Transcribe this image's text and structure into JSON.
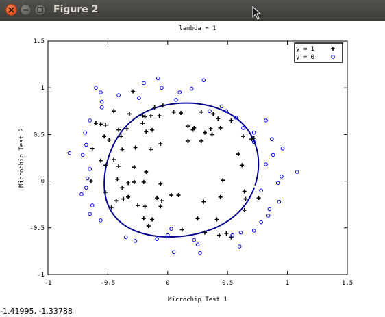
{
  "window": {
    "title": "Figure 2",
    "status_coords": "-1.41995, -1.33788"
  },
  "chart_data": {
    "type": "scatter",
    "title": "lambda = 1",
    "xlabel": "Microchip Test 1",
    "ylabel": "Microchip Test 2",
    "xlim": [
      -1,
      1.5
    ],
    "ylim": [
      -1,
      1.5
    ],
    "xticks": [
      -1,
      -0.5,
      0,
      0.5,
      1,
      1.5
    ],
    "xtick_labels": [
      "-1",
      "-0.5",
      "0",
      "0.5",
      "1",
      "1.5"
    ],
    "yticks": [
      -1,
      -0.5,
      0,
      0.5,
      1,
      1.5
    ],
    "ytick_labels": [
      "-1",
      "-0.5",
      "0",
      "0.5",
      "1",
      "1.5"
    ],
    "legend_position": "top-right",
    "series": [
      {
        "name": "y = 1",
        "marker": "plus",
        "color": "#000000",
        "points": [
          [
            -0.29,
            0.96
          ],
          [
            -0.04,
            0.81
          ],
          [
            -0.11,
            0.79
          ],
          [
            -0.45,
            0.75
          ],
          [
            -0.32,
            0.72
          ],
          [
            -0.21,
            0.7
          ],
          [
            -0.19,
            0.69
          ],
          [
            -0.14,
            0.7
          ],
          [
            -0.07,
            0.7
          ],
          [
            -0.6,
            0.62
          ],
          [
            -0.56,
            0.61
          ],
          [
            -0.21,
            0.62
          ],
          [
            -0.52,
            0.6
          ],
          [
            -0.34,
            0.56
          ],
          [
            -0.41,
            0.55
          ],
          [
            -0.18,
            0.53
          ],
          [
            -0.13,
            0.55
          ],
          [
            -0.39,
            0.48
          ],
          [
            -0.53,
            0.48
          ],
          [
            -0.49,
            0.44
          ],
          [
            -0.63,
            0.35
          ],
          [
            -0.38,
            0.34
          ],
          [
            -0.27,
            0.36
          ],
          [
            -0.14,
            0.34
          ],
          [
            -0.56,
            0.22
          ],
          [
            -0.45,
            0.23
          ],
          [
            -0.52,
            0.17
          ],
          [
            -0.41,
            0.16
          ],
          [
            -0.28,
            0.15
          ],
          [
            -0.18,
            0.1
          ],
          [
            -0.06,
            0.4
          ],
          [
            0.05,
            0.74
          ],
          [
            0.11,
            0.73
          ],
          [
            0.17,
            0.59
          ],
          [
            0.22,
            0.57
          ],
          [
            0.21,
            0.55
          ],
          [
            0.28,
            0.74
          ],
          [
            0.38,
            0.72
          ],
          [
            0.42,
            0.67
          ],
          [
            0.53,
            0.65
          ],
          [
            0.44,
            0.57
          ],
          [
            0.36,
            0.56
          ],
          [
            0.31,
            0.52
          ],
          [
            0.37,
            0.5
          ],
          [
            0.28,
            0.43
          ],
          [
            0.17,
            0.43
          ],
          [
            0.63,
            0.48
          ],
          [
            0.72,
            0.46
          ],
          [
            0.7,
            0.45
          ],
          [
            0.59,
            0.29
          ],
          [
            0.62,
            0.17
          ],
          [
            0.46,
            0.01
          ],
          [
            -0.42,
            0.02
          ],
          [
            -0.64,
            0.0
          ],
          [
            -0.28,
            -0.01
          ],
          [
            -0.33,
            -0.02
          ],
          [
            -0.2,
            -0.01
          ],
          [
            -0.06,
            -0.03
          ],
          [
            -0.38,
            -0.07
          ],
          [
            -0.52,
            -0.12
          ],
          [
            -0.37,
            -0.19
          ],
          [
            -0.33,
            -0.17
          ],
          [
            -0.09,
            -0.18
          ],
          [
            -0.43,
            -0.21
          ],
          [
            -0.47,
            -0.28
          ],
          [
            -0.25,
            -0.26
          ],
          [
            -0.19,
            -0.27
          ],
          [
            -0.06,
            -0.27
          ],
          [
            -0.05,
            -0.21
          ],
          [
            0.03,
            -0.15
          ],
          [
            0.09,
            -0.15
          ],
          [
            0.3,
            -0.22
          ],
          [
            0.44,
            -0.17
          ],
          [
            0.64,
            -0.11
          ],
          [
            0.65,
            -0.19
          ],
          [
            0.76,
            -0.18
          ],
          [
            0.64,
            -0.31
          ],
          [
            -0.2,
            -0.4
          ],
          [
            -0.13,
            -0.41
          ],
          [
            -0.16,
            -0.48
          ],
          [
            0.25,
            -0.4
          ],
          [
            0.12,
            -0.52
          ],
          [
            0.31,
            -0.55
          ],
          [
            0.41,
            -0.41
          ],
          [
            0.49,
            -0.56
          ],
          [
            0.53,
            -0.6
          ],
          [
            0.43,
            -0.58
          ]
        ]
      },
      {
        "name": "y = 0",
        "marker": "circle",
        "color": "#0000ff",
        "points": [
          [
            -0.08,
            1.1
          ],
          [
            -0.2,
            1.05
          ],
          [
            -0.05,
            1.0
          ],
          [
            0.1,
            0.95
          ],
          [
            0.2,
            0.99
          ],
          [
            0.35,
            0.75
          ],
          [
            0.3,
            1.08
          ],
          [
            -0.6,
            1.0
          ],
          [
            -0.56,
            0.95
          ],
          [
            -0.41,
            0.92
          ],
          [
            -0.24,
            0.89
          ],
          [
            0.07,
            0.87
          ],
          [
            0.45,
            0.8
          ],
          [
            0.49,
            0.75
          ],
          [
            0.57,
            0.68
          ],
          [
            0.63,
            0.57
          ],
          [
            0.72,
            0.52
          ],
          [
            0.72,
            0.42
          ],
          [
            0.82,
            0.65
          ],
          [
            0.87,
            0.45
          ],
          [
            0.96,
            0.35
          ],
          [
            0.88,
            0.28
          ],
          [
            0.82,
            0.18
          ],
          [
            1.08,
            0.1
          ],
          [
            0.95,
            0.05
          ],
          [
            0.92,
            -0.02
          ],
          [
            0.78,
            -0.1
          ],
          [
            0.93,
            -0.22
          ],
          [
            0.85,
            -0.3
          ],
          [
            0.84,
            -0.37
          ],
          [
            0.78,
            -0.44
          ],
          [
            0.72,
            -0.53
          ],
          [
            0.61,
            -0.55
          ],
          [
            0.6,
            -0.7
          ],
          [
            0.25,
            -0.68
          ],
          [
            0.22,
            -0.63
          ],
          [
            0.27,
            -0.77
          ],
          [
            0.03,
            -0.51
          ],
          [
            0.0,
            -0.58
          ],
          [
            -0.09,
            -0.62
          ],
          [
            -0.27,
            -0.64
          ],
          [
            -0.56,
            -0.42
          ],
          [
            -0.65,
            -0.35
          ],
          [
            -0.63,
            -0.26
          ],
          [
            -0.72,
            -0.14
          ],
          [
            -0.68,
            -0.07
          ],
          [
            -0.67,
            0.03
          ],
          [
            -0.65,
            0.13
          ],
          [
            -0.82,
            0.3
          ],
          [
            -0.71,
            0.28
          ],
          [
            -0.68,
            0.39
          ],
          [
            -0.69,
            0.52
          ],
          [
            -0.65,
            0.65
          ],
          [
            -0.55,
            0.79
          ],
          [
            -0.55,
            0.85
          ],
          [
            0.05,
            -0.76
          ],
          [
            0.54,
            -0.58
          ],
          [
            -0.35,
            -0.6
          ]
        ]
      }
    ],
    "boundary_color": "#00008b"
  }
}
